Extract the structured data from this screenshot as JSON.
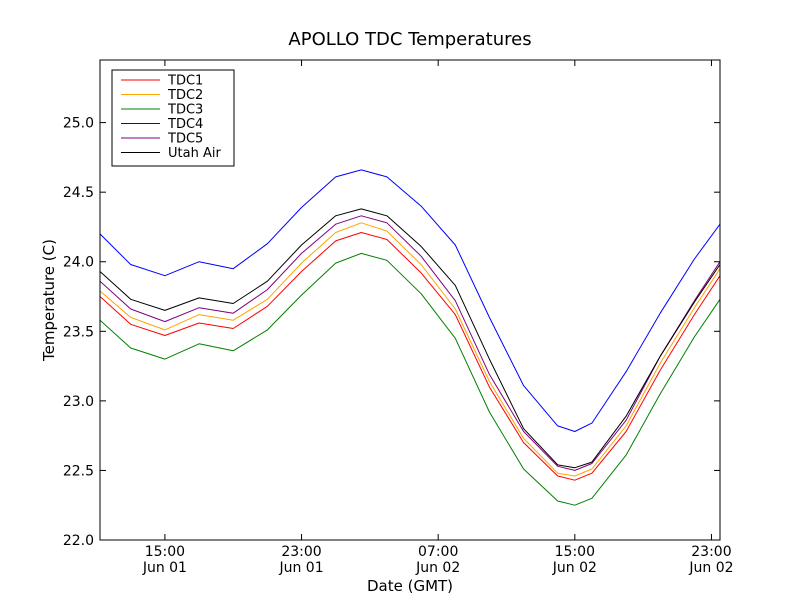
{
  "chart_data": {
    "type": "line",
    "title": "APOLLO TDC Temperatures",
    "xlabel": "Date (GMT)",
    "ylabel": "Temperature (C)",
    "xlim": [
      11.2,
      47.5
    ],
    "ylim": [
      22.0,
      25.45
    ],
    "grid": false,
    "legend_position": "top-left",
    "x_unit": "hours since 2000-06-01 00:00 GMT (display only)",
    "x_ticks": [
      {
        "x": 15,
        "time": "15:00",
        "date": "Jun 01"
      },
      {
        "x": 23,
        "time": "23:00",
        "date": "Jun 01"
      },
      {
        "x": 31,
        "time": "07:00",
        "date": "Jun 02"
      },
      {
        "x": 39,
        "time": "15:00",
        "date": "Jun 02"
      },
      {
        "x": 47,
        "time": "23:00",
        "date": "Jun 02"
      }
    ],
    "y_ticks": [
      "22.0",
      "22.5",
      "23.0",
      "23.5",
      "24.0",
      "24.5",
      "25.0"
    ],
    "x": [
      11.2,
      13,
      15,
      17,
      19,
      21,
      23,
      25,
      26.5,
      28,
      30,
      32,
      34,
      36,
      38,
      39,
      40,
      42,
      44,
      46,
      47.5
    ],
    "series": [
      {
        "name": "TDC1",
        "color": "#ff0000",
        "values": [
          23.75,
          23.55,
          23.47,
          23.56,
          23.52,
          23.68,
          23.93,
          24.15,
          24.21,
          24.16,
          23.92,
          23.62,
          23.1,
          22.7,
          22.46,
          22.43,
          22.48,
          22.78,
          23.22,
          23.62,
          23.9
        ]
      },
      {
        "name": "TDC2",
        "color": "#ffa500",
        "values": [
          23.79,
          23.6,
          23.51,
          23.62,
          23.58,
          23.73,
          23.99,
          24.21,
          24.28,
          24.22,
          23.98,
          23.66,
          23.14,
          22.73,
          22.48,
          22.46,
          22.51,
          22.82,
          23.27,
          23.67,
          23.95
        ]
      },
      {
        "name": "TDC3",
        "color": "#008000",
        "values": [
          23.58,
          23.38,
          23.3,
          23.41,
          23.36,
          23.51,
          23.76,
          23.99,
          24.06,
          24.01,
          23.77,
          23.45,
          22.92,
          22.51,
          22.28,
          22.25,
          22.3,
          22.61,
          23.05,
          23.46,
          23.73
        ]
      },
      {
        "name": "TDC4",
        "color": "#0000ff",
        "values": [
          24.2,
          23.98,
          23.9,
          24.0,
          23.95,
          24.13,
          24.39,
          24.61,
          24.66,
          24.61,
          24.4,
          24.12,
          23.6,
          23.11,
          22.82,
          22.78,
          22.84,
          23.21,
          23.63,
          24.02,
          24.27
        ]
      },
      {
        "name": "TDC5",
        "color": "#800080",
        "values": [
          23.86,
          23.66,
          23.57,
          23.67,
          23.63,
          23.8,
          24.06,
          24.27,
          24.33,
          24.28,
          24.04,
          23.72,
          23.19,
          22.78,
          22.53,
          22.5,
          22.55,
          22.86,
          23.32,
          23.72,
          24.0
        ]
      },
      {
        "name": "Utah Air",
        "color": "#000000",
        "values": [
          23.93,
          23.73,
          23.65,
          23.74,
          23.7,
          23.86,
          24.12,
          24.33,
          24.38,
          24.33,
          24.11,
          23.83,
          23.3,
          22.8,
          22.54,
          22.52,
          22.56,
          22.89,
          23.32,
          23.71,
          23.98
        ]
      }
    ]
  }
}
